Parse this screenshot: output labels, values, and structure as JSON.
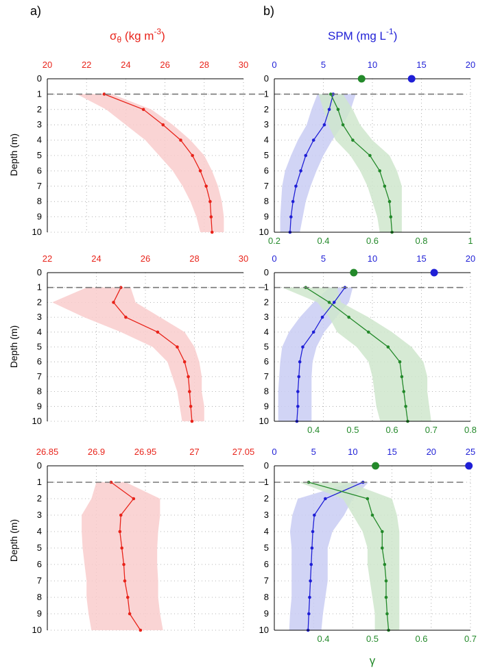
{
  "panel_labels": {
    "a": "a)",
    "b": "b)"
  },
  "headers": {
    "sigma": {
      "main": "σ",
      "sub": "θ",
      "rest": " (kg m",
      "sup": "-3",
      "end": ")"
    },
    "spm": {
      "main": "SPM (mg L",
      "sup": "-1",
      "end": ")"
    }
  },
  "ylabel": "Depth (m)",
  "bottom_xlabel": "γ",
  "colors": {
    "sigma": "#e8231a",
    "spm": "#1f1fd6",
    "gamma": "#23892a",
    "sigma_band": "#f9cccc",
    "spm_band": "#c9cdf3",
    "gamma_band": "#cfe6cd",
    "dash": "#777777"
  },
  "chart_data": [
    {
      "id": "sigma-row1",
      "type": "line",
      "ylabel": "Depth (m)",
      "xlim": [
        20,
        30
      ],
      "xticks": [
        "20",
        "22",
        "24",
        "26",
        "28",
        "30"
      ],
      "ylim": [
        0,
        10
      ],
      "yticks": [
        "0",
        "1",
        "2",
        "3",
        "4",
        "5",
        "6",
        "7",
        "8",
        "9",
        "10"
      ],
      "series": [
        {
          "depth": [
            1,
            2,
            3,
            4,
            5,
            6,
            7,
            8,
            9,
            10
          ],
          "values": [
            22.9,
            24.9,
            25.9,
            26.8,
            27.4,
            27.8,
            28.1,
            28.3,
            28.35,
            28.4
          ],
          "band_low": [
            21.5,
            23.0,
            24.0,
            25.0,
            25.7,
            26.4,
            26.9,
            27.3,
            27.6,
            27.8
          ],
          "band_high": [
            23.3,
            25.3,
            26.4,
            27.3,
            28.0,
            28.4,
            28.7,
            28.9,
            29.0,
            29.0
          ]
        }
      ],
      "top_markers": [],
      "dashed_depth": 1
    },
    {
      "id": "spm-row1",
      "type": "line",
      "xlim": [
        0,
        20
      ],
      "xticks": [
        "0",
        "5",
        "10",
        "15",
        "20"
      ],
      "x2lim": [
        0.2,
        1.0
      ],
      "x2ticks": [
        "0.2",
        "0.4",
        "0.6",
        "0.8",
        "1"
      ],
      "ylim": [
        0,
        10
      ],
      "series": [
        {
          "name": "SPM",
          "depth": [
            1,
            2,
            3,
            4,
            5,
            6,
            7,
            8,
            9,
            10
          ],
          "values": [
            6.0,
            5.6,
            5.1,
            4.0,
            3.2,
            2.7,
            2.2,
            1.9,
            1.7,
            1.6
          ],
          "band_low": [
            4.4,
            3.8,
            3.3,
            2.4,
            1.7,
            1.1,
            0.8,
            0.7,
            0.6,
            0.6
          ],
          "band_high": [
            8.3,
            7.8,
            7.0,
            5.9,
            5.0,
            4.3,
            3.7,
            3.2,
            2.9,
            2.6
          ]
        },
        {
          "name": "γ",
          "depth": [
            1,
            2,
            3,
            4,
            5,
            6,
            7,
            8,
            9,
            10
          ],
          "values": [
            0.43,
            0.46,
            0.48,
            0.52,
            0.59,
            0.63,
            0.65,
            0.67,
            0.675,
            0.68
          ],
          "band_low": [
            0.38,
            0.4,
            0.42,
            0.45,
            0.51,
            0.55,
            0.58,
            0.6,
            0.62,
            0.63
          ],
          "band_high": [
            0.48,
            0.52,
            0.55,
            0.6,
            0.67,
            0.7,
            0.72,
            0.72,
            0.72,
            0.72
          ]
        }
      ],
      "top_markers": [
        {
          "series": "γ",
          "value": 8.9
        },
        {
          "series": "SPM",
          "value": 14.0
        }
      ],
      "dashed_depth": 1
    },
    {
      "id": "sigma-row2",
      "type": "line",
      "xlim": [
        22,
        30
      ],
      "xticks": [
        "22",
        "24",
        "26",
        "28",
        "30"
      ],
      "ylim": [
        0,
        10
      ],
      "series": [
        {
          "depth": [
            1,
            2,
            3,
            4,
            5,
            6,
            7,
            8,
            9,
            10
          ],
          "values": [
            25.0,
            24.7,
            25.2,
            26.5,
            27.3,
            27.6,
            27.75,
            27.8,
            27.85,
            27.9
          ],
          "band_low": [
            23.6,
            22.2,
            23.5,
            25.0,
            26.3,
            26.9,
            27.1,
            27.3,
            27.4,
            27.5
          ],
          "band_high": [
            25.4,
            25.6,
            26.6,
            27.6,
            28.0,
            28.2,
            28.3,
            28.3,
            28.4,
            28.4
          ]
        }
      ],
      "top_markers": [],
      "dashed_depth": 1
    },
    {
      "id": "spm-row2",
      "type": "line",
      "xlim": [
        0,
        20
      ],
      "xticks": [
        "0",
        "5",
        "10",
        "15",
        "20"
      ],
      "x2lim": [
        0.3,
        0.8
      ],
      "x2ticks": [
        "0.4",
        "0.5",
        "0.6",
        "0.7",
        "0.8"
      ],
      "ylim": [
        0,
        10
      ],
      "series": [
        {
          "name": "SPM",
          "depth": [
            1,
            2,
            3,
            4,
            5,
            6,
            7,
            8,
            9,
            10
          ],
          "values": [
            7.2,
            6.1,
            4.9,
            4.0,
            2.9,
            2.6,
            2.5,
            2.4,
            2.4,
            2.3
          ],
          "band_low": [
            5.6,
            4.0,
            2.6,
            1.5,
            0.8,
            0.6,
            0.5,
            0.4,
            0.4,
            0.4
          ],
          "band_high": [
            8.0,
            7.6,
            6.3,
            5.1,
            4.3,
            3.9,
            3.8,
            3.8,
            3.8,
            3.8
          ]
        },
        {
          "name": "γ",
          "depth": [
            1,
            2,
            3,
            4,
            5,
            6,
            7,
            8,
            9,
            10
          ],
          "values": [
            0.38,
            0.44,
            0.49,
            0.54,
            0.59,
            0.62,
            0.625,
            0.63,
            0.635,
            0.64
          ],
          "band_low": [
            0.32,
            0.41,
            0.44,
            0.46,
            0.51,
            0.54,
            0.55,
            0.555,
            0.56,
            0.57
          ],
          "band_high": [
            0.46,
            0.47,
            0.54,
            0.6,
            0.65,
            0.68,
            0.69,
            0.69,
            0.695,
            0.7
          ]
        }
      ],
      "top_markers": [
        {
          "series": "γ",
          "value": 8.1
        },
        {
          "series": "SPM",
          "value": 16.3
        }
      ],
      "dashed_depth": 1
    },
    {
      "id": "sigma-row3",
      "type": "line",
      "xlim": [
        26.85,
        27.05
      ],
      "xticks": [
        "26.85",
        "26.9",
        "26.95",
        "27",
        "27.05"
      ],
      "ylim": [
        0,
        10
      ],
      "series": [
        {
          "depth": [
            1,
            2,
            3,
            4,
            5,
            6,
            7,
            8,
            9,
            10
          ],
          "values": [
            26.915,
            26.938,
            26.925,
            26.924,
            26.926,
            26.928,
            26.929,
            26.932,
            26.934,
            26.945
          ],
          "band_low": [
            26.9,
            26.895,
            26.885,
            26.885,
            26.886,
            26.888,
            26.89,
            26.89,
            26.892,
            26.895
          ],
          "band_high": [
            26.93,
            26.965,
            26.965,
            26.963,
            26.962,
            26.962,
            26.963,
            26.963,
            26.965,
            26.968
          ]
        }
      ],
      "top_markers": [],
      "dashed_depth": 1
    },
    {
      "id": "spm-row3",
      "type": "line",
      "xlabel": "γ",
      "xlim": [
        0,
        25
      ],
      "xticks": [
        "0",
        "5",
        "10",
        "15",
        "20",
        "25"
      ],
      "x2lim": [
        0.3,
        0.7
      ],
      "x2ticks": [
        "0.4",
        "0.5",
        "0.6",
        "0.7"
      ],
      "ylim": [
        0,
        10
      ],
      "series": [
        {
          "name": "SPM",
          "depth": [
            1,
            2,
            3,
            4,
            5,
            6,
            7,
            8,
            9,
            10
          ],
          "values": [
            11.3,
            6.5,
            5.1,
            4.9,
            4.8,
            4.7,
            4.6,
            4.5,
            4.4,
            4.3
          ],
          "band_low": [
            10.0,
            3.0,
            2.3,
            2.0,
            2.2,
            2.2,
            2.2,
            2.2,
            2.0,
            1.9
          ],
          "band_high": [
            12.0,
            10.0,
            8.9,
            7.4,
            6.8,
            6.8,
            6.8,
            6.5,
            6.2,
            6.0
          ]
        },
        {
          "name": "γ",
          "depth": [
            1,
            2,
            3,
            4,
            5,
            6,
            7,
            8,
            9,
            10
          ],
          "values": [
            0.37,
            0.49,
            0.5,
            0.52,
            0.52,
            0.525,
            0.528,
            0.528,
            0.53,
            0.533
          ],
          "band_low": [
            0.35,
            0.44,
            0.46,
            0.48,
            0.49,
            0.49,
            0.495,
            0.5,
            0.505,
            0.505
          ],
          "band_high": [
            0.45,
            0.54,
            0.55,
            0.555,
            0.555,
            0.555,
            0.555,
            0.555,
            0.555,
            0.555
          ]
        }
      ],
      "top_markers": [
        {
          "series": "γ",
          "value": 12.9
        },
        {
          "series": "SPM",
          "value": 24.8
        }
      ],
      "dashed_depth": 1
    }
  ]
}
